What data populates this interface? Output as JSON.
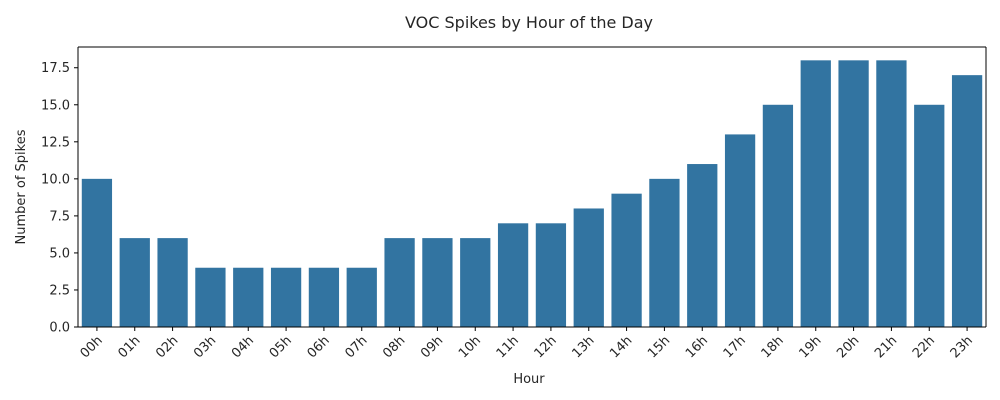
{
  "chart_data": {
    "type": "bar",
    "title": "VOC Spikes by Hour of the Day",
    "xlabel": "Hour",
    "ylabel": "Number of Spikes",
    "categories": [
      "00h",
      "01h",
      "02h",
      "03h",
      "04h",
      "05h",
      "06h",
      "07h",
      "08h",
      "09h",
      "10h",
      "11h",
      "12h",
      "13h",
      "14h",
      "15h",
      "16h",
      "17h",
      "18h",
      "19h",
      "20h",
      "21h",
      "22h",
      "23h"
    ],
    "values": [
      10,
      6,
      6,
      4,
      4,
      4,
      4,
      4,
      6,
      6,
      6,
      7,
      7,
      8,
      9,
      10,
      11,
      13,
      15,
      18,
      18,
      18,
      15,
      17
    ],
    "ylim": [
      0,
      18.9
    ],
    "yticks": [
      "0.0",
      "2.5",
      "5.0",
      "7.5",
      "10.0",
      "12.5",
      "15.0",
      "17.5"
    ],
    "bar_color": "#3274a1",
    "grid": false,
    "legend": "none"
  }
}
